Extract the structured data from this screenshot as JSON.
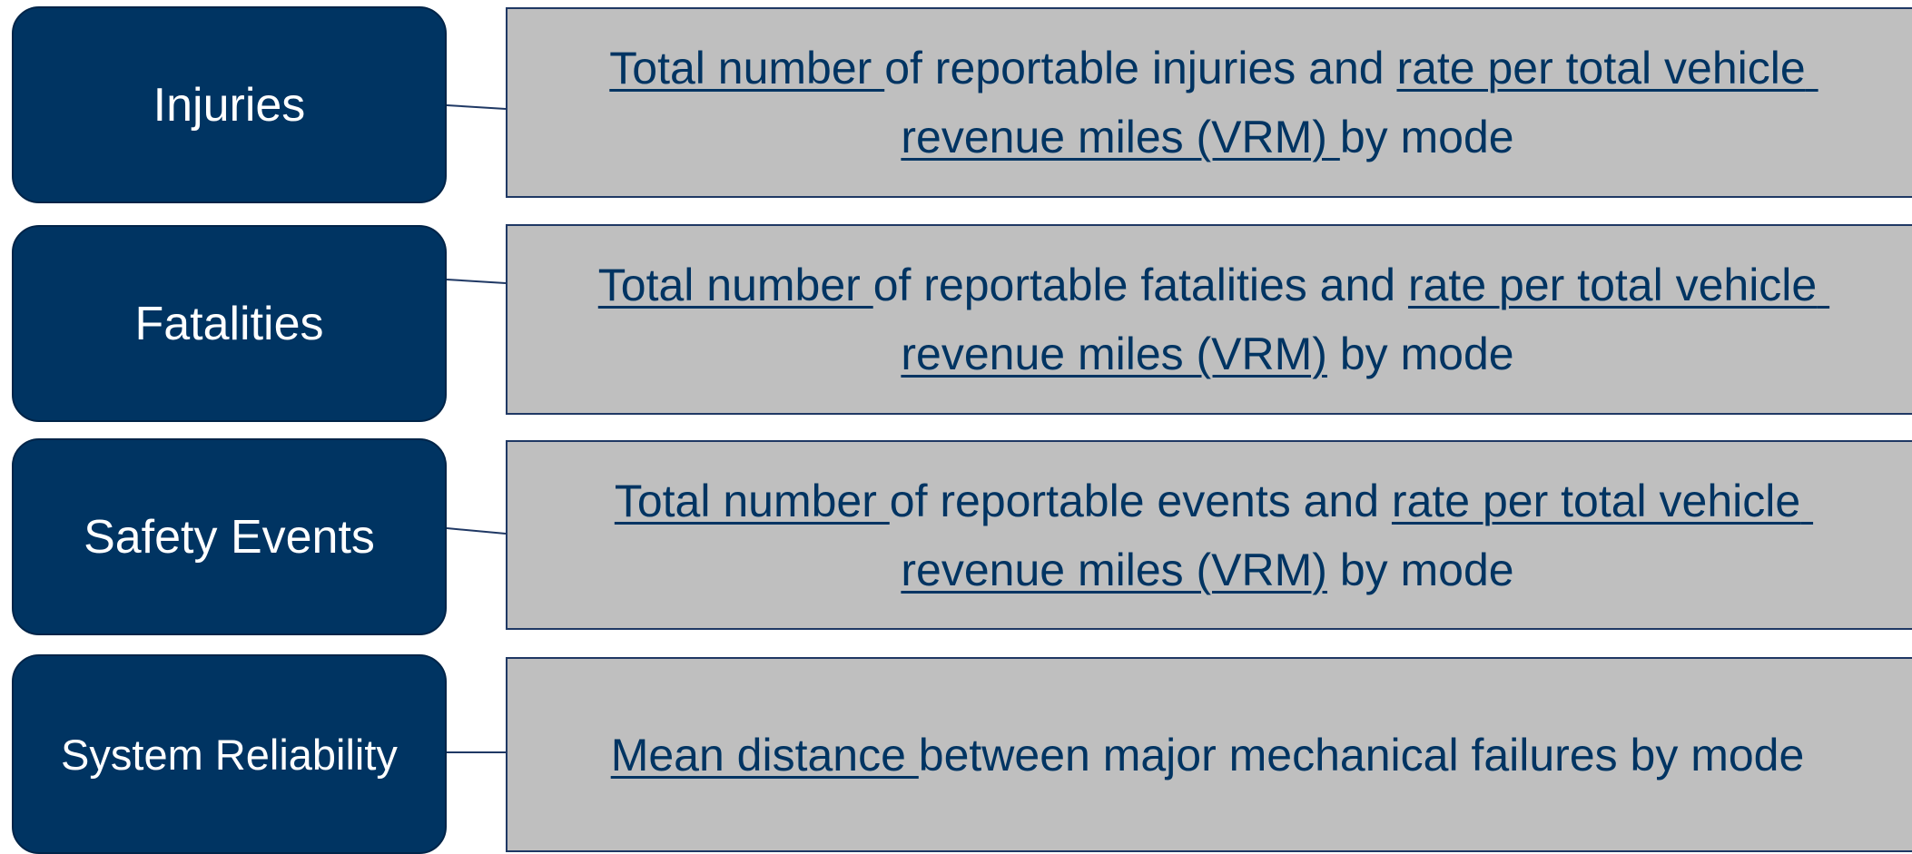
{
  "rows": [
    {
      "label": "Injuries",
      "description": [
        {
          "text": "Total number ",
          "underlined": true
        },
        {
          "text": "of reportable injuries and ",
          "underlined": false
        },
        {
          "text": "rate per total vehicle revenue miles (VRM) ",
          "underlined": true
        },
        {
          "text": "by mode",
          "underlined": false
        }
      ]
    },
    {
      "label": "Fatalities",
      "description": [
        {
          "text": "Total number ",
          "underlined": true
        },
        {
          "text": "of reportable fatalities and ",
          "underlined": false
        },
        {
          "text": "rate per total vehicle revenue miles (VRM)",
          "underlined": true
        },
        {
          "text": " by mode",
          "underlined": false
        }
      ]
    },
    {
      "label": "Safety Events",
      "description": [
        {
          "text": "Total number ",
          "underlined": true
        },
        {
          "text": "of reportable events and ",
          "underlined": false
        },
        {
          "text": "rate per total vehicle revenue miles (VRM)",
          "underlined": true
        },
        {
          "text": " by mode",
          "underlined": false
        }
      ]
    },
    {
      "label": "System Reliability",
      "description": [
        {
          "text": "Mean distance ",
          "underlined": true
        },
        {
          "text": "between major mechanical failures by mode",
          "underlined": false
        }
      ]
    }
  ]
}
